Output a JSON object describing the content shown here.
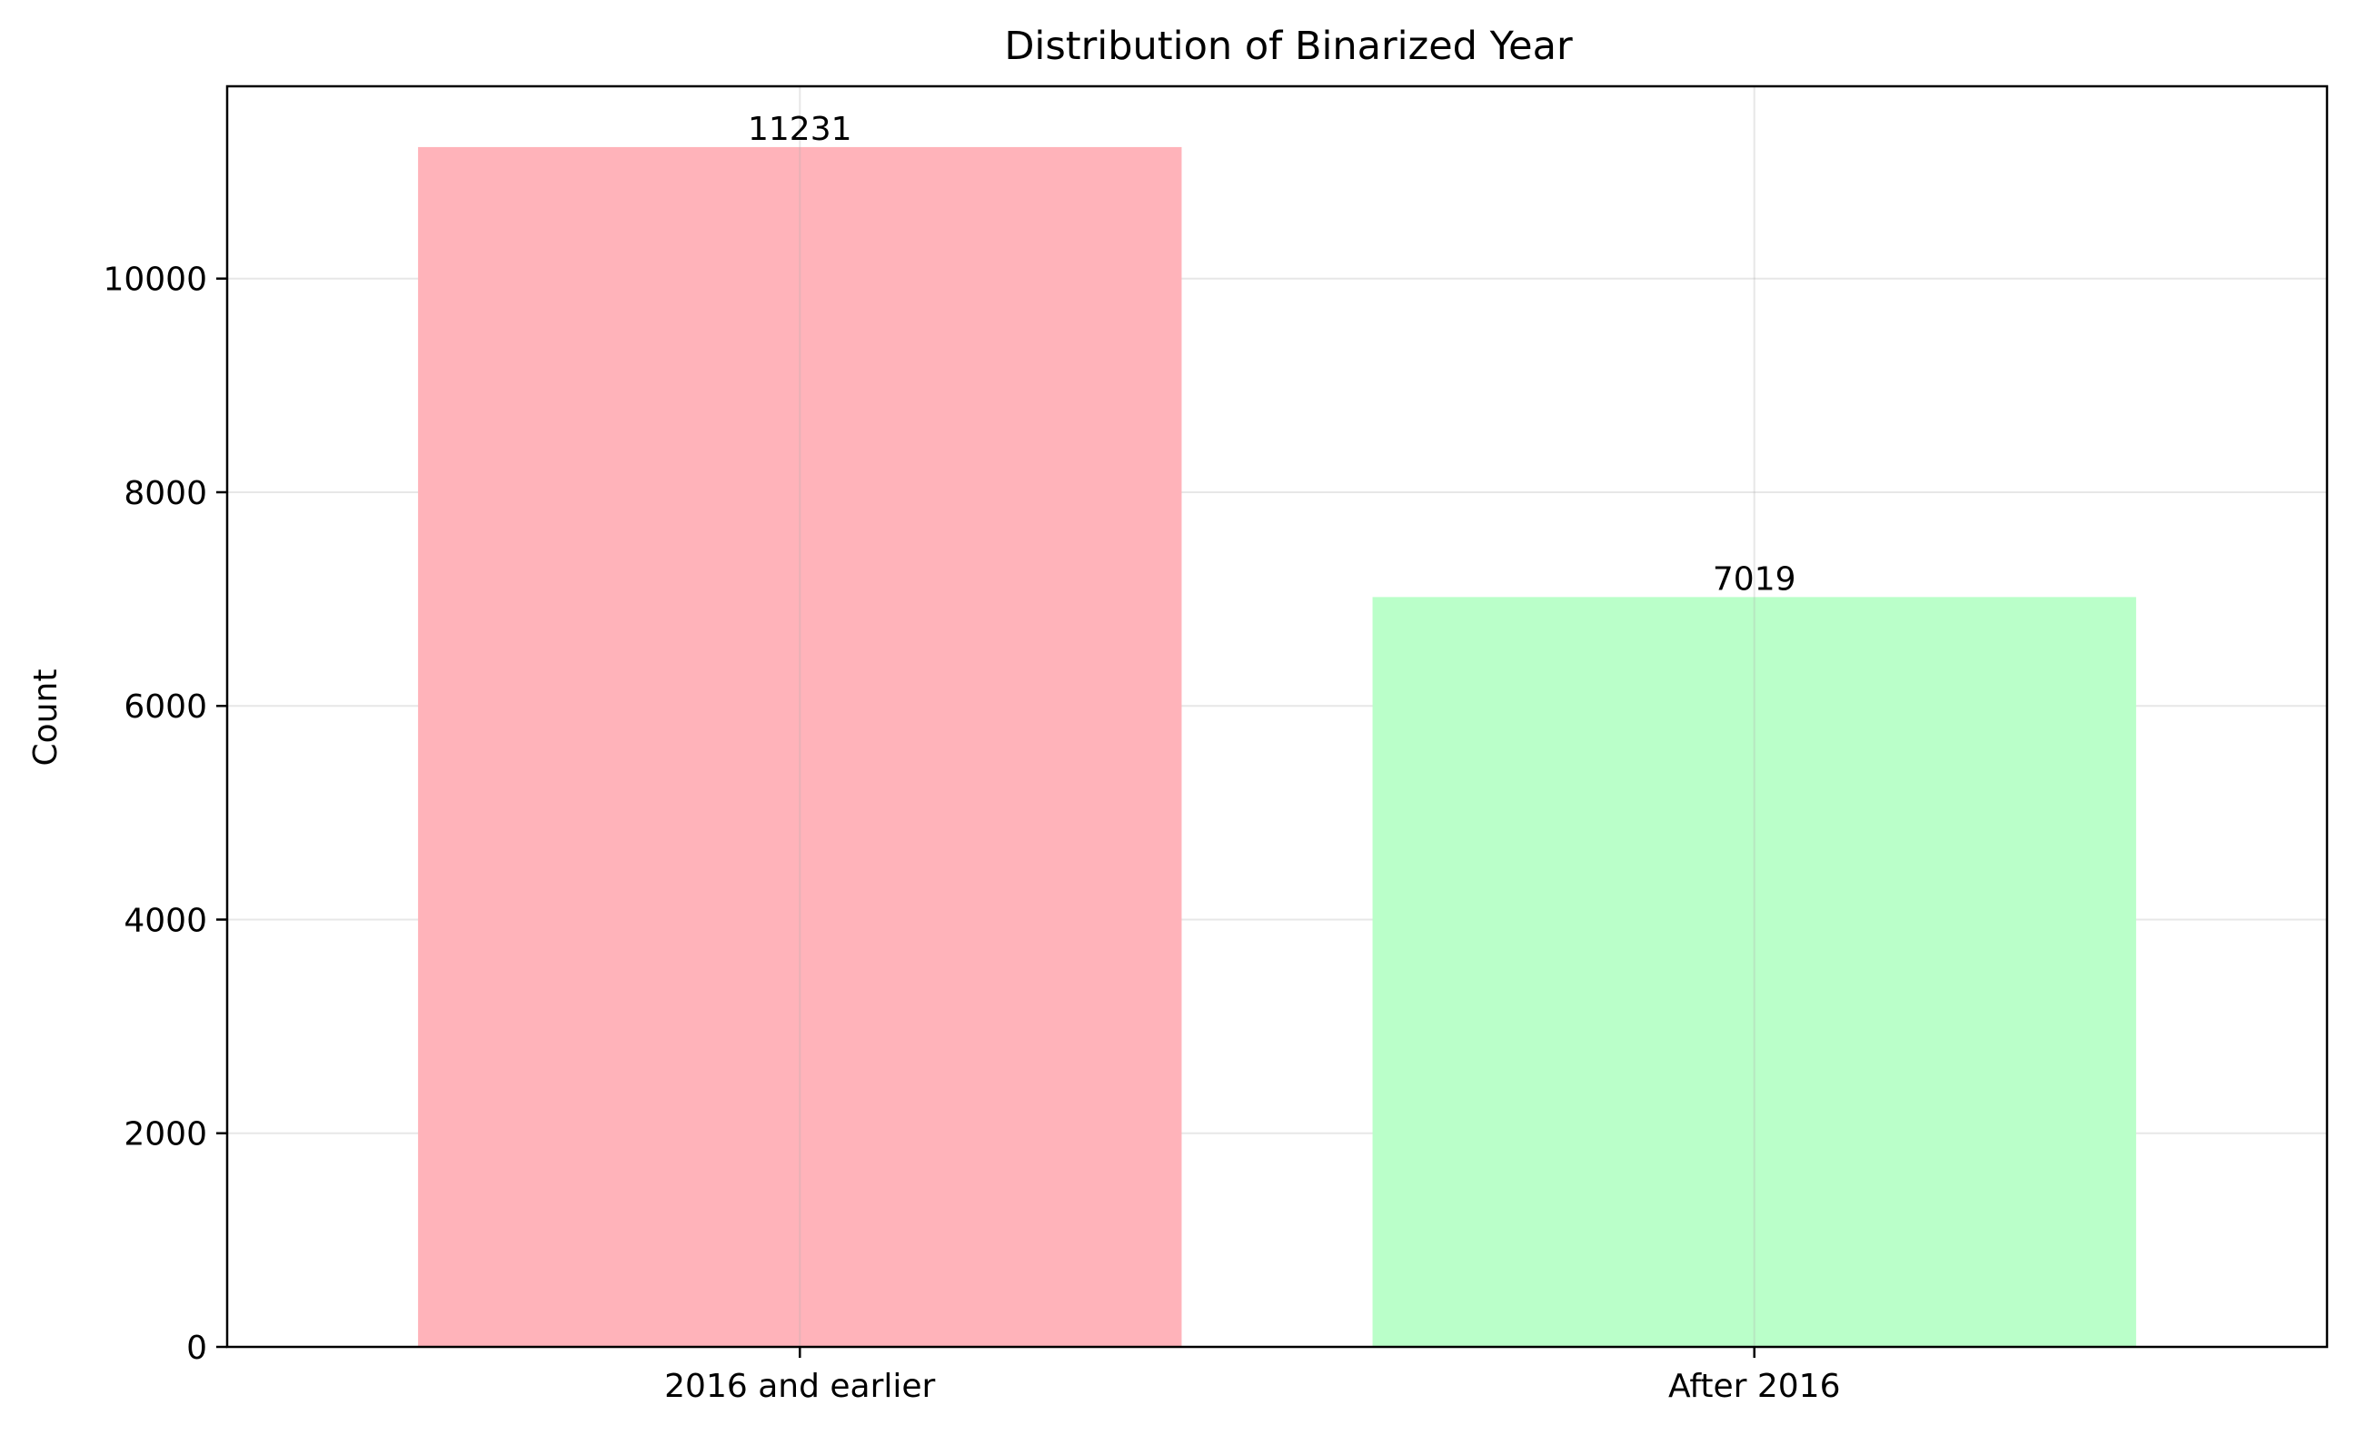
{
  "chart_data": {
    "type": "bar",
    "title": "Distribution of Binarized Year",
    "xlabel": "",
    "ylabel": "Count",
    "categories": [
      "2016 and earlier",
      "After 2016"
    ],
    "values": [
      11231,
      7019
    ],
    "value_labels": [
      "11231",
      "7019"
    ],
    "colors": [
      "#ffb3ba",
      "#baffc9"
    ],
    "ylim": [
      0,
      11800
    ],
    "yticks": [
      0,
      2000,
      4000,
      6000,
      8000,
      10000
    ],
    "ytick_labels": [
      "0",
      "2000",
      "4000",
      "6000",
      "8000",
      "10000"
    ],
    "grid": true,
    "legend": "none"
  }
}
